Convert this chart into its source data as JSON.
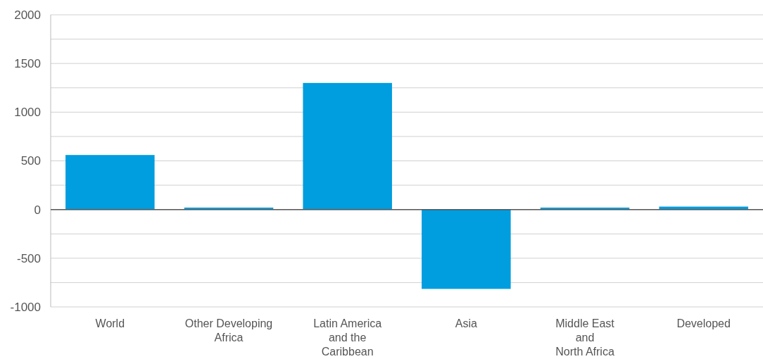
{
  "chart_data": {
    "type": "bar",
    "categories": [
      "World",
      "Other Developing\nAfrica",
      "Latin America\nand the\nCaribbean",
      "Asia",
      "Middle East\nand\nNorth Africa",
      "Developed"
    ],
    "values": [
      560,
      20,
      1300,
      -815,
      20,
      30
    ],
    "color": "#009ddf",
    "ylim": [
      -1000,
      2000
    ],
    "yticks": [
      -1000,
      {
        "value": -750,
        "label": null
      },
      -500,
      {
        "value": -250,
        "label": null
      },
      0,
      {
        "value": 250,
        "label": null
      },
      500,
      {
        "value": 750,
        "label": null
      },
      1000,
      {
        "value": 1250,
        "label": null
      },
      1500,
      {
        "value": 1750,
        "label": null
      },
      2000
    ],
    "grid": "y"
  }
}
